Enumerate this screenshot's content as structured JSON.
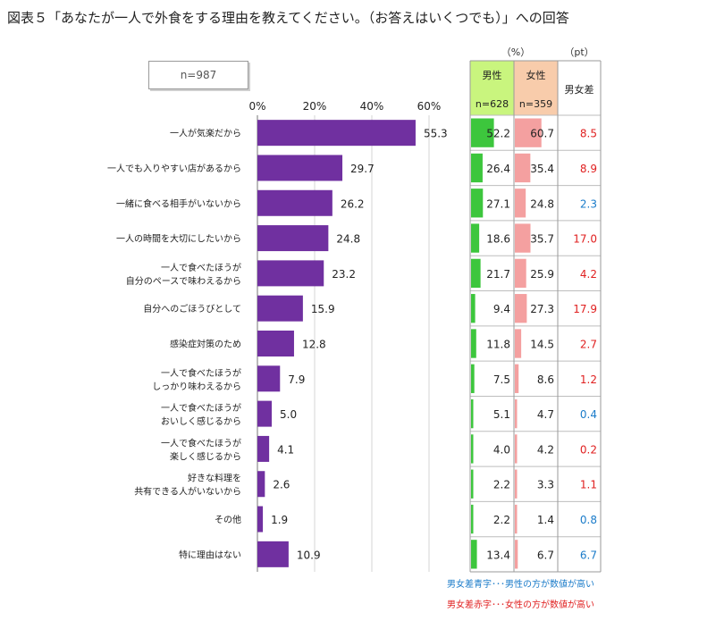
{
  "title": "図表５「あなたが一人で外食をする理由を教えてください。（お答えはいくつでも）」への回答",
  "sample_label": "n=987",
  "table": {
    "unit_pct": "（%）",
    "unit_pt": "（pt）",
    "male_header": "男性",
    "male_n": "n=628",
    "female_header": "女性",
    "female_n": "n=359",
    "diff_header": "男女差",
    "colors": {
      "male_fill": "#3dc63d",
      "male_bg": "#c9f57e",
      "female_fill": "#f4a0a0",
      "female_bg": "#f8ccab",
      "diff_blue": "#1a7bc9",
      "diff_red": "#e02020"
    }
  },
  "legend": {
    "blue": "男女差青字･･･男性の方が数値が高い",
    "red": "男女差赤字･･･女性の方が数値が高い"
  },
  "chart_data": {
    "type": "bar",
    "orientation": "horizontal",
    "bar_color": "#7030a0",
    "xlim": [
      0,
      60
    ],
    "xticks": [
      "0%",
      "20%",
      "40%",
      "60%"
    ],
    "categories": [
      [
        "一人が気楽だから"
      ],
      [
        "一人でも入りやすい店があるから"
      ],
      [
        "一緒に食べる相手がいないから"
      ],
      [
        "一人の時間を大切にしたいから"
      ],
      [
        "一人で食べたほうが",
        "自分のペースで味わえるから"
      ],
      [
        "自分へのごほうびとして"
      ],
      [
        "感染症対策のため"
      ],
      [
        "一人で食べたほうが",
        "しっかり味わえるから"
      ],
      [
        "一人で食べたほうが",
        "おいしく感じるから"
      ],
      [
        "一人で食べたほうが",
        "楽しく感じるから"
      ],
      [
        "好きな料理を",
        "共有できる人がいないから"
      ],
      [
        "その他"
      ],
      [
        "特に理由はない"
      ]
    ],
    "values": [
      55.3,
      29.7,
      26.2,
      24.8,
      23.2,
      15.9,
      12.8,
      7.9,
      5.0,
      4.1,
      2.6,
      1.9,
      10.9
    ],
    "value_labels": [
      "55.3",
      "29.7",
      "26.2",
      "24.8",
      "23.2",
      "15.9",
      "12.8",
      "7.9",
      "5.0",
      "4.1",
      "2.6",
      "1.9",
      "10.9"
    ],
    "male": [
      "52.2",
      "26.4",
      "27.1",
      "18.6",
      "21.7",
      "9.4",
      "11.8",
      "7.5",
      "5.1",
      "4.0",
      "2.2",
      "2.2",
      "13.4"
    ],
    "female": [
      "60.7",
      "35.4",
      "24.8",
      "35.7",
      "25.9",
      "27.3",
      "14.5",
      "8.6",
      "4.7",
      "4.2",
      "3.3",
      "1.4",
      "6.7"
    ],
    "diff": [
      "8.5",
      "8.9",
      "2.3",
      "17.0",
      "4.2",
      "17.9",
      "2.7",
      "1.2",
      "0.4",
      "0.2",
      "1.1",
      "0.8",
      "6.7"
    ],
    "diff_color": [
      "red",
      "red",
      "blue",
      "red",
      "red",
      "red",
      "red",
      "red",
      "blue",
      "red",
      "red",
      "blue",
      "blue"
    ]
  }
}
